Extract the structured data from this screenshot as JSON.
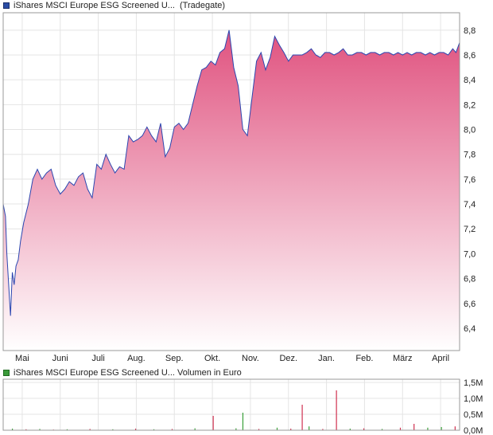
{
  "price_legend": {
    "label": "iShares MSCI Europe ESG Screened U...",
    "source": "(Tradegate)",
    "color": "#2b4da6"
  },
  "volume_legend": {
    "label": "iShares MSCI Europe ESG Screened U... Volumen in Euro",
    "color": "#3a9a3a"
  },
  "colors": {
    "line": "#2b46b0",
    "fill_top": "#e0527f",
    "fill_bottom": "#ffffff",
    "grid": "#e4e4e4",
    "axis": "#999999",
    "vol_up": "#3aa03a",
    "vol_down": "#d03050"
  },
  "chart_data": [
    {
      "type": "area",
      "title": "",
      "series": [
        {
          "name": "iShares MSCI Europe ESG Screened U... (Tradegate)"
        }
      ],
      "x_ticks": [
        "Mai",
        "Juni",
        "Juli",
        "Aug.",
        "Sep.",
        "Okt.",
        "Nov.",
        "Dez.",
        "Jan.",
        "Feb.",
        "März",
        "April"
      ],
      "y_ticks": [
        "6,4",
        "6,6",
        "6,8",
        "7,0",
        "7,2",
        "7,4",
        "7,6",
        "7,8",
        "8,0",
        "8,2",
        "8,4",
        "8,6",
        "8,8"
      ],
      "ylim": [
        6.22,
        8.94
      ],
      "grid": true,
      "x": [
        0,
        0.005,
        0.008,
        0.012,
        0.016,
        0.02,
        0.024,
        0.028,
        0.033,
        0.038,
        0.045,
        0.055,
        0.065,
        0.075,
        0.085,
        0.095,
        0.105,
        0.115,
        0.125,
        0.135,
        0.145,
        0.155,
        0.165,
        0.175,
        0.185,
        0.195,
        0.205,
        0.215,
        0.225,
        0.235,
        0.245,
        0.255,
        0.265,
        0.275,
        0.285,
        0.295,
        0.305,
        0.315,
        0.325,
        0.335,
        0.345,
        0.355,
        0.365,
        0.375,
        0.385,
        0.395,
        0.405,
        0.415,
        0.425,
        0.435,
        0.445,
        0.455,
        0.465,
        0.475,
        0.485,
        0.495,
        0.505,
        0.515,
        0.525,
        0.535,
        0.545,
        0.555,
        0.565,
        0.575,
        0.585,
        0.595,
        0.605,
        0.615,
        0.625,
        0.635,
        0.645,
        0.655,
        0.665,
        0.675,
        0.685,
        0.695,
        0.705,
        0.715,
        0.725,
        0.735,
        0.745,
        0.755,
        0.765,
        0.775,
        0.785,
        0.795,
        0.805,
        0.815,
        0.825,
        0.835,
        0.845,
        0.855,
        0.865,
        0.875,
        0.885,
        0.895,
        0.905,
        0.915,
        0.925,
        0.935,
        0.945,
        0.955,
        0.965,
        0.975,
        0.985,
        0.992,
        1
      ],
      "values": [
        7.4,
        7.3,
        7.0,
        6.75,
        6.5,
        6.85,
        6.75,
        6.9,
        6.95,
        7.1,
        7.25,
        7.4,
        7.6,
        7.68,
        7.6,
        7.65,
        7.68,
        7.55,
        7.48,
        7.52,
        7.58,
        7.55,
        7.62,
        7.65,
        7.52,
        7.45,
        7.72,
        7.68,
        7.8,
        7.72,
        7.65,
        7.7,
        7.68,
        7.95,
        7.9,
        7.92,
        7.95,
        8.02,
        7.95,
        7.9,
        8.05,
        7.78,
        7.85,
        8.02,
        8.05,
        8.0,
        8.05,
        8.2,
        8.35,
        8.48,
        8.5,
        8.55,
        8.52,
        8.62,
        8.65,
        8.8,
        8.5,
        8.35,
        8.0,
        7.95,
        8.25,
        8.55,
        8.62,
        8.48,
        8.58,
        8.75,
        8.68,
        8.62,
        8.55,
        8.6,
        8.6,
        8.6,
        8.62,
        8.65,
        8.6,
        8.58,
        8.62,
        8.62,
        8.6,
        8.62,
        8.65,
        8.6,
        8.6,
        8.62,
        8.62,
        8.6,
        8.62,
        8.62,
        8.6,
        8.62,
        8.62,
        8.6,
        8.62,
        8.6,
        8.62,
        8.6,
        8.62,
        8.62,
        8.6,
        8.62,
        8.6,
        8.62,
        8.62,
        8.6,
        8.65,
        8.62,
        8.7
      ]
    },
    {
      "type": "bar",
      "title": "Volumen in Euro",
      "y_ticks": [
        "1,5M",
        "1,0M",
        "0,5M",
        "0,0M"
      ],
      "ylim": [
        0,
        1.6
      ],
      "unit": "M EUR",
      "bars": [
        {
          "x": 0.02,
          "v": 0.05,
          "up": true
        },
        {
          "x": 0.05,
          "v": 0.03,
          "up": false
        },
        {
          "x": 0.08,
          "v": 0.04,
          "up": true
        },
        {
          "x": 0.11,
          "v": 0.02,
          "up": false
        },
        {
          "x": 0.14,
          "v": 0.03,
          "up": true
        },
        {
          "x": 0.19,
          "v": 0.04,
          "up": false
        },
        {
          "x": 0.24,
          "v": 0.03,
          "up": true
        },
        {
          "x": 0.29,
          "v": 0.05,
          "up": false
        },
        {
          "x": 0.33,
          "v": 0.03,
          "up": true
        },
        {
          "x": 0.37,
          "v": 0.04,
          "up": false
        },
        {
          "x": 0.42,
          "v": 0.06,
          "up": true
        },
        {
          "x": 0.46,
          "v": 0.45,
          "up": false
        },
        {
          "x": 0.51,
          "v": 0.06,
          "up": true
        },
        {
          "x": 0.525,
          "v": 0.55,
          "up": true
        },
        {
          "x": 0.56,
          "v": 0.04,
          "up": false
        },
        {
          "x": 0.6,
          "v": 0.08,
          "up": true
        },
        {
          "x": 0.63,
          "v": 0.05,
          "up": false
        },
        {
          "x": 0.655,
          "v": 0.8,
          "up": false
        },
        {
          "x": 0.67,
          "v": 0.12,
          "up": true
        },
        {
          "x": 0.7,
          "v": 0.04,
          "up": false
        },
        {
          "x": 0.73,
          "v": 1.25,
          "up": false
        },
        {
          "x": 0.76,
          "v": 0.05,
          "up": true
        },
        {
          "x": 0.79,
          "v": 0.06,
          "up": false
        },
        {
          "x": 0.83,
          "v": 0.04,
          "up": true
        },
        {
          "x": 0.87,
          "v": 0.08,
          "up": false
        },
        {
          "x": 0.9,
          "v": 0.2,
          "up": false
        },
        {
          "x": 0.93,
          "v": 0.08,
          "up": true
        },
        {
          "x": 0.96,
          "v": 0.1,
          "up": true
        },
        {
          "x": 0.99,
          "v": 0.12,
          "up": false
        }
      ]
    }
  ]
}
